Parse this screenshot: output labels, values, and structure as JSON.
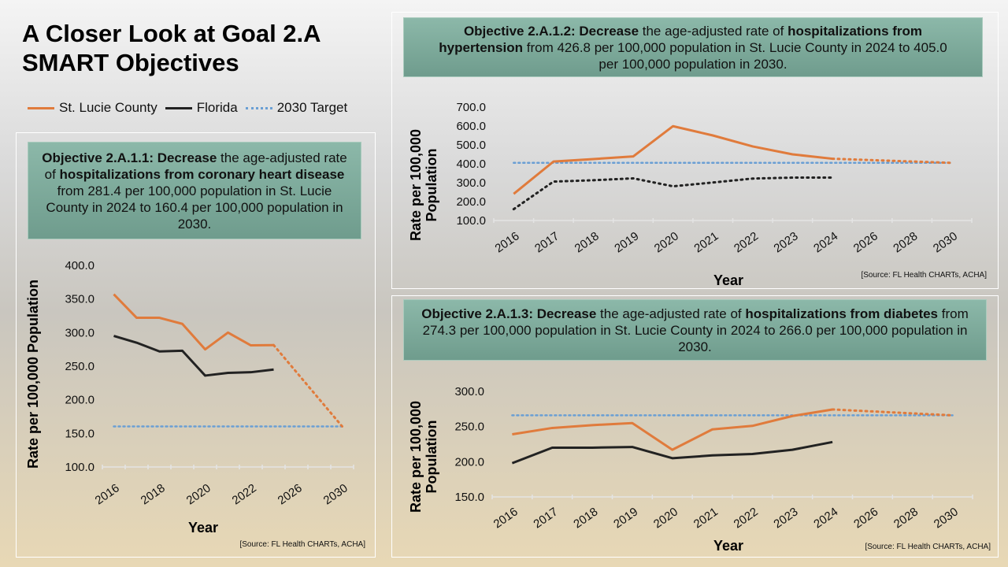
{
  "slide": {
    "title_line1": "A Closer Look at Goal 2.A",
    "title_line2": "SMART Objectives"
  },
  "legend": [
    {
      "label": "St. Lucie County",
      "color": "#e07b3c",
      "style": "solid"
    },
    {
      "label": "Florida",
      "color": "#222222",
      "style": "solid"
    },
    {
      "label": "2030 Target",
      "color": "#6a9fd4",
      "style": "dotted"
    }
  ],
  "objectives": [
    {
      "segments": [
        {
          "text": "Objective 2.A.1.1: Decrease",
          "bold": true
        },
        {
          "text": " the age-adjusted rate of ",
          "bold": false
        },
        {
          "text": "hospitalizations from coronary heart disease",
          "bold": true
        },
        {
          "text": " from 281.4 per 100,000 population in St. Lucie County in 2024 to 160.4 per 100,000 population in 2030.",
          "bold": false
        }
      ]
    },
    {
      "segments": [
        {
          "text": "Objective 2.A.1.2: Decrease",
          "bold": true
        },
        {
          "text": " the age-adjusted rate of ",
          "bold": false
        },
        {
          "text": "hospitalizations from hypertension",
          "bold": true
        },
        {
          "text": " from 426.8 per 100,000 population in St. Lucie County in 2024 to 405.0 per 100,000 population in 2030.",
          "bold": false
        }
      ]
    },
    {
      "segments": [
        {
          "text": "Objective 2.A.1.3: Decrease",
          "bold": true
        },
        {
          "text": " the age-adjusted rate of ",
          "bold": false
        },
        {
          "text": "hospitalizations from diabetes",
          "bold": true
        },
        {
          "text": " from 274.3 per 100,000 population in St. Lucie County in 2024 to 266.0 per 100,000 population in 2030.",
          "bold": false
        }
      ]
    }
  ],
  "chart_data": [
    {
      "type": "line",
      "xlabel": "Year",
      "ylabel": "Rate per 100,000 Population",
      "source": "[Source: FL Health  CHARTs, ACHA]",
      "categories": [
        "2016",
        "2017",
        "2018",
        "2019",
        "2020",
        "2021",
        "2022",
        "2024",
        "2026",
        "2028",
        "2030"
      ],
      "tick_labels": [
        "2016",
        "",
        "2018",
        "",
        "2020",
        "",
        "2022",
        "",
        "2026",
        "",
        "2030"
      ],
      "yticks": [
        "100.0",
        "150.0",
        "200.0",
        "250.0",
        "300.0",
        "350.0",
        "400.0"
      ],
      "ylim": [
        100,
        400
      ],
      "series": [
        {
          "name": "St. Lucie County",
          "values": [
            357,
            322,
            322,
            313,
            275,
            300,
            281,
            281.4,
            null,
            null,
            null
          ],
          "projection": {
            "from": "2024",
            "to": "2030",
            "values": [
              281.4,
              160.4
            ]
          }
        },
        {
          "name": "Florida",
          "values": [
            295,
            285,
            272,
            273,
            236,
            240,
            241,
            245,
            null,
            null,
            null
          ]
        },
        {
          "name": "2030 Target",
          "value": 160.4
        }
      ]
    },
    {
      "type": "line",
      "xlabel": "Year",
      "ylabel": "Rate per 100,000 Population",
      "source": "[Source: FL Health  CHARTs, ACHA]",
      "categories": [
        "2016",
        "2017",
        "2018",
        "2019",
        "2020",
        "2021",
        "2022",
        "2023",
        "2024",
        "2026",
        "2028",
        "2030"
      ],
      "tick_labels": [
        "2016",
        "2017",
        "2018",
        "2019",
        "2020",
        "2021",
        "2022",
        "2023",
        "2024",
        "2026",
        "2028",
        "2030"
      ],
      "yticks": [
        "100.0",
        "200.0",
        "300.0",
        "400.0",
        "500.0",
        "600.0",
        "700.0"
      ],
      "ylim": [
        100,
        700
      ],
      "series": [
        {
          "name": "St. Lucie County",
          "values": [
            241,
            412,
            425,
            439,
            599,
            550,
            492,
            450,
            426.8,
            null,
            null,
            null
          ],
          "projection": {
            "from": "2024",
            "to": "2030",
            "values": [
              426.8,
              405.0
            ]
          }
        },
        {
          "name": "Florida",
          "values": [
            160,
            306,
            313,
            323,
            281,
            301,
            322,
            327,
            327,
            null,
            null,
            null
          ],
          "dotted": true
        },
        {
          "name": "2030 Target",
          "value": 405.0
        }
      ]
    },
    {
      "type": "line",
      "xlabel": "Year",
      "ylabel": "Rate per 100,000 Population",
      "source": "[Source: FL Health  CHARTs, ACHA]",
      "categories": [
        "2016",
        "2017",
        "2018",
        "2019",
        "2020",
        "2021",
        "2022",
        "2023",
        "2024",
        "2026",
        "2028",
        "2030"
      ],
      "tick_labels": [
        "2016",
        "2017",
        "2018",
        "2019",
        "2020",
        "2021",
        "2022",
        "2023",
        "2024",
        "2026",
        "2028",
        "2030"
      ],
      "yticks": [
        "150.0",
        "200.0",
        "250.0",
        "300.0"
      ],
      "ylim": [
        150,
        300
      ],
      "series": [
        {
          "name": "St. Lucie County",
          "values": [
            239,
            248,
            252,
            255,
            217,
            246,
            251,
            265,
            274.3,
            null,
            null,
            null
          ],
          "projection": {
            "from": "2024",
            "to": "2030",
            "values": [
              274.3,
              266.0
            ]
          }
        },
        {
          "name": "Florida",
          "values": [
            198,
            220,
            220,
            221,
            205,
            209,
            211,
            217,
            228,
            null,
            null,
            null
          ]
        },
        {
          "name": "2030 Target",
          "value": 266.0
        }
      ]
    }
  ]
}
